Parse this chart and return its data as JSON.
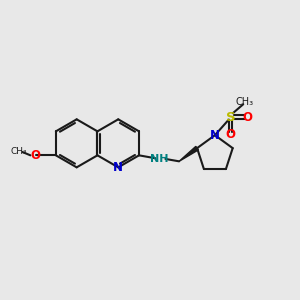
{
  "bg_color": "#e8e8e8",
  "bond_color": "#1a1a1a",
  "N_color": "#0000cc",
  "O_color": "#ff0000",
  "S_color": "#bbbb00",
  "NH_color": "#008080",
  "lw": 1.5,
  "figsize": [
    3.0,
    3.0
  ],
  "dpi": 100,
  "bl": 0.72,
  "xlim": [
    0.5,
    9.5
  ],
  "ylim": [
    0.5,
    9.5
  ]
}
